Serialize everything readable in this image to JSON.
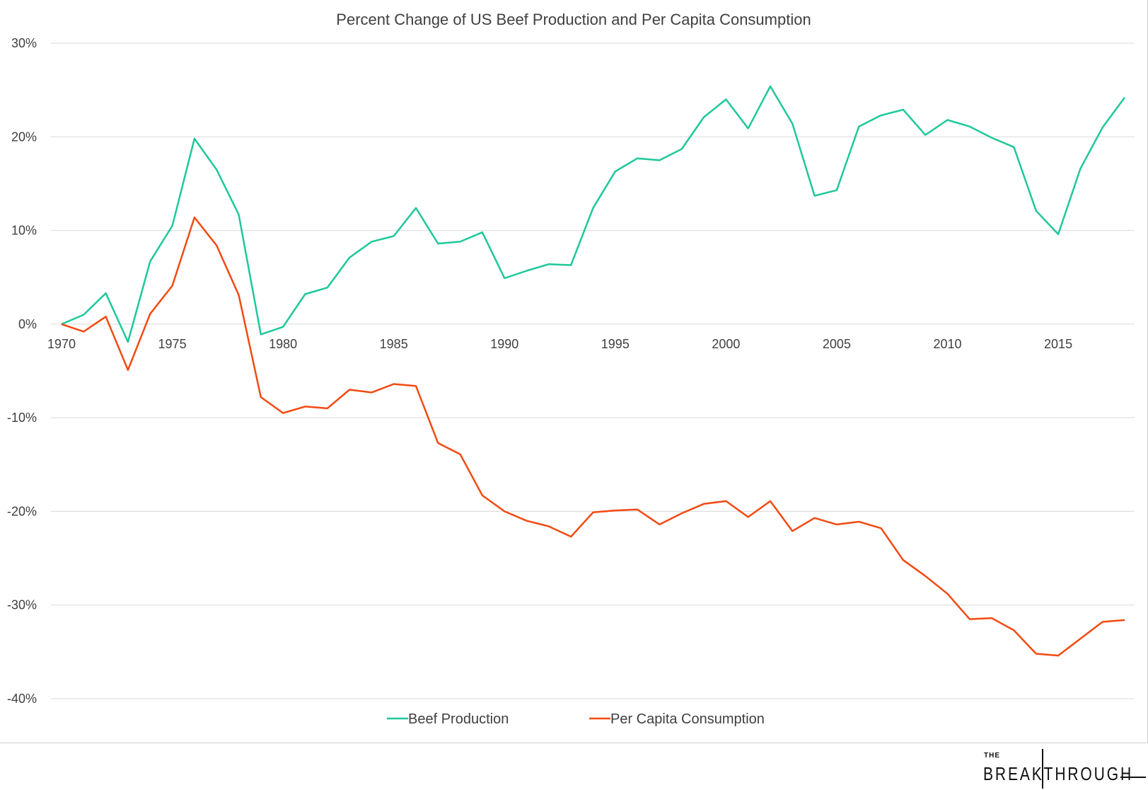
{
  "chart_data": {
    "type": "line",
    "title": "Percent Change of US Beef Production and Per Capita Consumption",
    "xlabel": "",
    "ylabel": "",
    "ylim": [
      -40,
      30
    ],
    "yticks": [
      30,
      20,
      10,
      0,
      -10,
      -20,
      -30,
      -40
    ],
    "ytick_labels": [
      "30%",
      "20%",
      "10%",
      "0%",
      "-10%",
      "-20%",
      "-30%",
      "-40%"
    ],
    "xlim": [
      1970,
      2018
    ],
    "xticks": [
      1970,
      1975,
      1980,
      1985,
      1990,
      1995,
      2000,
      2005,
      2010,
      2015
    ],
    "xtick_labels": [
      "1970",
      "1975",
      "1980",
      "1985",
      "1990",
      "1995",
      "2000",
      "2005",
      "2010",
      "2015"
    ],
    "grid": true,
    "legend_position": "bottom",
    "x": [
      1970,
      1971,
      1972,
      1973,
      1974,
      1975,
      1976,
      1977,
      1978,
      1979,
      1980,
      1981,
      1982,
      1983,
      1984,
      1985,
      1986,
      1987,
      1988,
      1989,
      1990,
      1991,
      1992,
      1993,
      1994,
      1995,
      1996,
      1997,
      1998,
      1999,
      2000,
      2001,
      2002,
      2003,
      2004,
      2005,
      2006,
      2007,
      2008,
      2009,
      2010,
      2011,
      2012,
      2013,
      2014,
      2015,
      2016,
      2017,
      2018
    ],
    "series": [
      {
        "name": "Beef Production",
        "color": "#1ec89a",
        "values": [
          0,
          1.0,
          3.3,
          -1.9,
          6.7,
          10.5,
          19.8,
          16.5,
          11.7,
          -1.1,
          -0.3,
          3.2,
          3.9,
          7.1,
          8.8,
          9.4,
          12.4,
          8.6,
          8.8,
          9.8,
          4.9,
          5.7,
          6.4,
          6.3,
          12.4,
          16.3,
          17.7,
          17.5,
          18.7,
          22.1,
          24.0,
          20.9,
          25.4,
          21.4,
          13.7,
          14.3,
          21.1,
          22.3,
          22.9,
          20.2,
          21.8,
          21.1,
          19.9,
          18.9,
          12.1,
          9.6,
          16.6,
          21.0,
          24.2
        ]
      },
      {
        "name": "Per Capita Consumption",
        "color": "#f24a12",
        "values": [
          0,
          -0.8,
          0.8,
          -4.9,
          1.1,
          4.1,
          11.4,
          8.4,
          3.1,
          -7.8,
          -9.5,
          -8.8,
          -9.0,
          -7.0,
          -7.3,
          -6.4,
          -6.6,
          -12.7,
          -13.9,
          -18.3,
          -20.0,
          -21.0,
          -21.6,
          -22.7,
          -20.1,
          -19.9,
          -19.8,
          -21.4,
          -20.2,
          -19.2,
          -18.9,
          -20.6,
          -18.9,
          -22.1,
          -20.7,
          -21.4,
          -21.1,
          -21.8,
          -25.2,
          -26.9,
          -28.8,
          -31.5,
          -31.4,
          -32.7,
          -35.2,
          -35.4,
          -33.6,
          -31.8,
          -31.6
        ]
      }
    ]
  },
  "logo": {
    "top_word": "THE",
    "main_word": "BREAKTHROUGH"
  }
}
